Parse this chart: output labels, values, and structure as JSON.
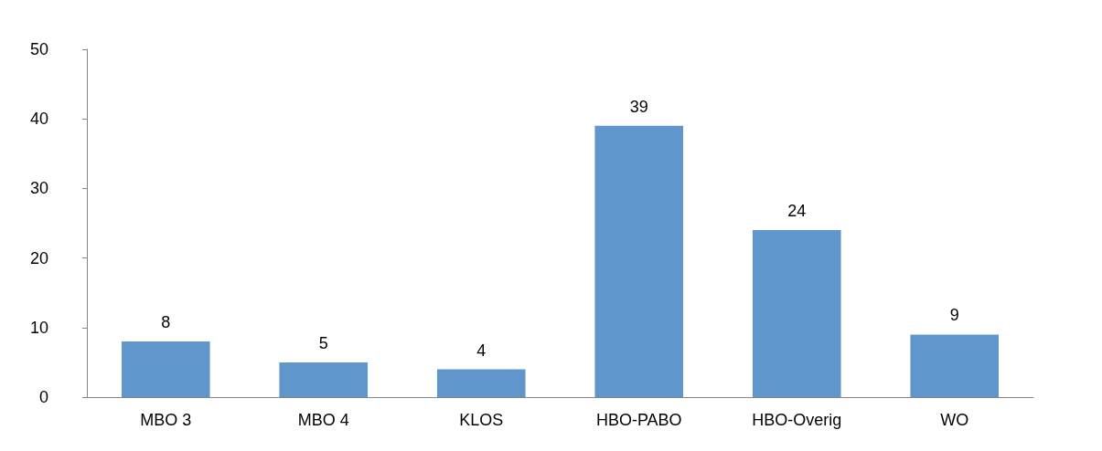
{
  "chart_data": {
    "type": "bar",
    "categories": [
      "MBO 3",
      "MBO 4",
      "KLOS",
      "HBO-PABO",
      "HBO-Overig",
      "WO"
    ],
    "values": [
      8,
      5,
      4,
      39,
      24,
      9
    ],
    "color": "#6096cb",
    "ylim": [
      0,
      50
    ],
    "yticks": [
      0,
      10,
      20,
      30,
      40,
      50
    ],
    "grid": false,
    "data_labels": true
  }
}
